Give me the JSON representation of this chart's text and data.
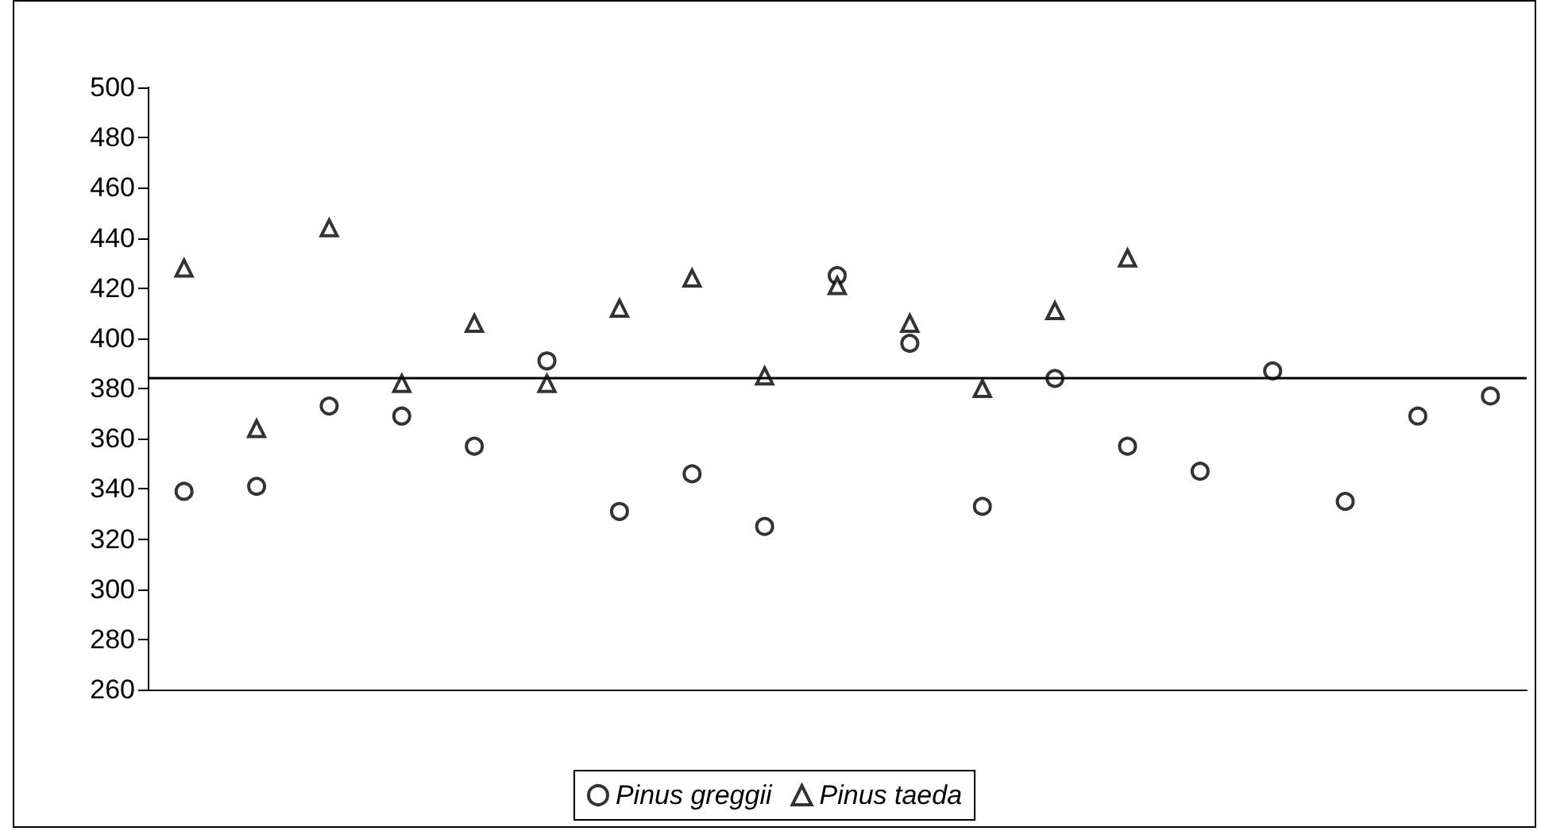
{
  "chart_data": {
    "type": "scatter",
    "categories": [
      null,
      null,
      null,
      null,
      null,
      null,
      null,
      null,
      null,
      null,
      null,
      null,
      null,
      null,
      null,
      null,
      null,
      null,
      null
    ],
    "ylim": [
      260,
      500
    ],
    "yticks": [
      260,
      280,
      300,
      320,
      340,
      360,
      380,
      400,
      420,
      440,
      460,
      480,
      500
    ],
    "grid": false,
    "legend": "bottom",
    "ref_lines": [
      {
        "axis": "y",
        "value": 384,
        "color": "#000000"
      }
    ],
    "series": [
      {
        "name": "Pinus greggii",
        "color": "#000000",
        "marker": "circle",
        "values": [
          339,
          341,
          373,
          369,
          357,
          391,
          331,
          346,
          325,
          425,
          398,
          333,
          384,
          357,
          347,
          387,
          335,
          369,
          377
        ]
      },
      {
        "name": "Pinus taeda",
        "color": "#000000",
        "marker": "triangle",
        "values": [
          428,
          364,
          444,
          382,
          406,
          382,
          412,
          424,
          385,
          421,
          406,
          380,
          411,
          432,
          null,
          null,
          null,
          null,
          null
        ]
      }
    ]
  }
}
